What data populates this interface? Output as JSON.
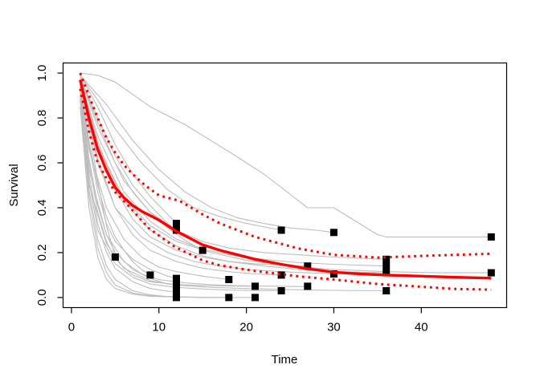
{
  "chart_data": {
    "type": "line",
    "title": "",
    "xlabel": "Time",
    "ylabel": "Survival",
    "xlim": [
      -0.96,
      49.76
    ],
    "ylim": [
      -0.045,
      1.045
    ],
    "x_ticks": [
      0,
      10,
      20,
      30,
      40
    ],
    "x_tick_labels": [
      "0",
      "10",
      "20",
      "30",
      "40"
    ],
    "y_ticks": [
      0.0,
      0.2,
      0.4,
      0.6,
      0.8,
      1.0
    ],
    "y_tick_labels": [
      "0.0",
      "0.2",
      "0.4",
      "0.6",
      "0.8",
      "1.0"
    ],
    "grid": false,
    "legend": false,
    "colors": {
      "individual_curve": "#bdbdbd",
      "mean_curve": "#ff0000",
      "confidence_band": "#ff0000",
      "event_marker": "#000000",
      "axis": "#000000"
    },
    "series": [
      {
        "name": "mean-survival",
        "style": "solid-thick",
        "x": [
          1,
          2,
          3,
          4,
          5,
          6,
          7,
          8,
          9,
          10,
          11,
          12,
          13,
          15,
          17,
          19,
          21,
          24,
          27,
          30,
          33,
          36,
          40,
          44,
          48
        ],
        "y": [
          0.97,
          0.8,
          0.66,
          0.565,
          0.49,
          0.445,
          0.41,
          0.385,
          0.365,
          0.345,
          0.32,
          0.295,
          0.275,
          0.235,
          0.21,
          0.19,
          0.17,
          0.148,
          0.128,
          0.113,
          0.105,
          0.1,
          0.095,
          0.09,
          0.086
        ]
      },
      {
        "name": "upper-confidence-band",
        "style": "dotted-thick",
        "x": [
          1,
          2,
          3,
          4,
          5,
          6,
          7,
          8.4,
          10,
          12.4,
          15,
          17,
          21,
          26,
          30,
          35,
          40,
          44,
          48
        ],
        "y": [
          1.0,
          0.9,
          0.8,
          0.71,
          0.645,
          0.59,
          0.55,
          0.5,
          0.455,
          0.43,
          0.37,
          0.33,
          0.27,
          0.218,
          0.19,
          0.178,
          0.185,
          0.19,
          0.195
        ]
      },
      {
        "name": "lower-confidence-band",
        "style": "dotted-thick",
        "x": [
          1,
          2,
          3,
          4,
          5,
          6.6,
          8.8,
          11.8,
          15,
          17,
          21,
          26,
          30,
          35,
          40,
          44,
          48
        ],
        "y": [
          0.93,
          0.74,
          0.6,
          0.53,
          0.47,
          0.405,
          0.31,
          0.226,
          0.165,
          0.143,
          0.118,
          0.094,
          0.08,
          0.06,
          0.048,
          0.038,
          0.035
        ]
      }
    ],
    "individual_curves": [
      {
        "x": [
          1,
          2,
          3,
          4,
          5
        ],
        "y": [
          0.97,
          0.75,
          0.52,
          0.32,
          0.18
        ]
      },
      {
        "x": [
          1,
          2,
          3,
          4,
          5,
          6,
          7,
          8,
          9
        ],
        "y": [
          0.96,
          0.7,
          0.5,
          0.36,
          0.27,
          0.21,
          0.16,
          0.125,
          0.1
        ]
      },
      {
        "x": [
          1,
          3,
          5,
          7,
          9,
          11,
          12
        ],
        "y": [
          0.99,
          0.85,
          0.68,
          0.55,
          0.45,
          0.37,
          0.33
        ]
      },
      {
        "x": [
          1,
          3,
          5,
          7,
          9,
          11,
          12
        ],
        "y": [
          0.98,
          0.8,
          0.63,
          0.5,
          0.41,
          0.33,
          0.3
        ]
      },
      {
        "x": [
          1,
          2,
          3,
          4,
          5,
          7,
          9,
          11,
          12
        ],
        "y": [
          0.95,
          0.68,
          0.47,
          0.33,
          0.25,
          0.17,
          0.125,
          0.095,
          0.085
        ]
      },
      {
        "x": [
          1,
          2,
          3,
          4,
          5,
          7,
          9,
          11,
          12
        ],
        "y": [
          0.94,
          0.62,
          0.41,
          0.28,
          0.2,
          0.125,
          0.085,
          0.06,
          0.055
        ]
      },
      {
        "x": [
          1,
          2,
          3,
          4,
          5,
          7,
          9,
          11,
          12
        ],
        "y": [
          0.92,
          0.55,
          0.33,
          0.2,
          0.13,
          0.07,
          0.04,
          0.028,
          0.025
        ]
      },
      {
        "x": [
          1,
          2,
          3,
          4,
          5,
          7,
          9,
          11,
          12
        ],
        "y": [
          0.9,
          0.48,
          0.26,
          0.14,
          0.08,
          0.03,
          0.012,
          0.004,
          0.002
        ]
      },
      {
        "x": [
          1,
          3,
          5,
          7,
          9,
          11,
          13,
          15
        ],
        "y": [
          0.98,
          0.78,
          0.6,
          0.47,
          0.38,
          0.31,
          0.255,
          0.21
        ]
      },
      {
        "x": [
          1,
          2,
          4,
          6,
          8,
          10,
          12,
          15,
          18
        ],
        "y": [
          0.95,
          0.66,
          0.4,
          0.26,
          0.18,
          0.135,
          0.115,
          0.095,
          0.08
        ]
      },
      {
        "x": [
          1,
          2,
          3,
          4,
          5,
          7,
          9,
          12,
          15,
          18
        ],
        "y": [
          0.88,
          0.45,
          0.22,
          0.11,
          0.055,
          0.02,
          0.008,
          0.003,
          0.001,
          0.0
        ]
      },
      {
        "x": [
          1,
          2,
          3,
          4,
          5,
          7,
          9,
          12,
          15,
          18,
          21
        ],
        "y": [
          0.93,
          0.6,
          0.38,
          0.25,
          0.17,
          0.1,
          0.07,
          0.058,
          0.053,
          0.051,
          0.05
        ]
      },
      {
        "x": [
          1,
          2,
          3,
          4,
          5,
          7,
          9,
          12,
          15,
          21
        ],
        "y": [
          0.85,
          0.4,
          0.18,
          0.08,
          0.04,
          0.015,
          0.005,
          0.002,
          0.0,
          0.0
        ]
      },
      {
        "x": [
          1,
          3,
          5,
          8,
          11,
          14,
          17,
          20,
          24
        ],
        "y": [
          0.99,
          0.88,
          0.75,
          0.6,
          0.48,
          0.4,
          0.36,
          0.33,
          0.3
        ]
      },
      {
        "x": [
          1,
          3,
          5,
          7,
          9,
          12,
          15,
          18,
          21,
          24
        ],
        "y": [
          0.96,
          0.62,
          0.4,
          0.28,
          0.21,
          0.16,
          0.13,
          0.115,
          0.105,
          0.1
        ]
      },
      {
        "x": [
          1,
          2,
          3,
          5,
          7,
          9,
          12,
          15,
          18,
          21,
          24
        ],
        "y": [
          0.91,
          0.52,
          0.3,
          0.15,
          0.09,
          0.06,
          0.045,
          0.038,
          0.033,
          0.031,
          0.03
        ]
      },
      {
        "x": [
          1,
          3,
          5,
          7,
          9,
          12,
          15,
          18,
          21,
          24,
          27
        ],
        "y": [
          0.97,
          0.7,
          0.48,
          0.35,
          0.27,
          0.21,
          0.18,
          0.16,
          0.15,
          0.145,
          0.14
        ]
      },
      {
        "x": [
          1,
          2,
          4,
          6,
          8,
          10,
          13,
          16,
          20,
          24,
          27
        ],
        "y": [
          0.92,
          0.57,
          0.28,
          0.16,
          0.105,
          0.08,
          0.065,
          0.057,
          0.052,
          0.05,
          0.048
        ]
      },
      {
        "x": [
          1,
          4,
          7,
          10,
          13,
          16,
          19,
          22,
          25,
          28,
          30
        ],
        "y": [
          0.99,
          0.86,
          0.7,
          0.57,
          0.47,
          0.4,
          0.355,
          0.33,
          0.31,
          0.3,
          0.29
        ]
      },
      {
        "x": [
          1,
          3,
          5,
          8,
          11,
          14,
          17,
          20,
          24,
          27,
          30
        ],
        "y": [
          0.95,
          0.6,
          0.4,
          0.27,
          0.2,
          0.16,
          0.14,
          0.125,
          0.115,
          0.11,
          0.105
        ]
      },
      {
        "x": [
          1,
          3,
          6,
          9,
          12,
          15,
          18,
          22,
          26,
          30,
          36
        ],
        "y": [
          0.98,
          0.76,
          0.52,
          0.38,
          0.3,
          0.25,
          0.22,
          0.2,
          0.19,
          0.18,
          0.17
        ]
      },
      {
        "x": [
          1,
          3,
          6,
          9,
          12,
          15,
          18,
          22,
          26,
          30,
          36
        ],
        "y": [
          0.97,
          0.72,
          0.47,
          0.34,
          0.26,
          0.215,
          0.19,
          0.17,
          0.155,
          0.148,
          0.14
        ]
      },
      {
        "x": [
          1,
          3,
          6,
          9,
          12,
          15,
          18,
          22,
          26,
          30,
          36
        ],
        "y": [
          0.96,
          0.67,
          0.43,
          0.3,
          0.23,
          0.185,
          0.16,
          0.14,
          0.125,
          0.115,
          0.11
        ]
      },
      {
        "x": [
          1,
          2,
          4,
          6,
          9,
          12,
          16,
          20,
          25,
          30,
          36
        ],
        "y": [
          0.9,
          0.5,
          0.24,
          0.13,
          0.075,
          0.055,
          0.045,
          0.04,
          0.035,
          0.032,
          0.03
        ]
      },
      {
        "x": [
          1,
          3,
          5,
          9,
          13,
          18,
          22,
          27,
          30,
          35,
          36,
          48
        ],
        "y": [
          1.0,
          0.99,
          0.96,
          0.85,
          0.77,
          0.65,
          0.55,
          0.4,
          0.4,
          0.28,
          0.27,
          0.27
        ]
      },
      {
        "x": [
          1,
          3,
          6,
          9,
          12,
          16,
          20,
          25,
          30,
          36,
          42,
          48
        ],
        "y": [
          0.97,
          0.68,
          0.44,
          0.32,
          0.25,
          0.2,
          0.165,
          0.14,
          0.125,
          0.115,
          0.11,
          0.11
        ]
      }
    ],
    "event_markers": [
      {
        "x": 5,
        "y": 0.18
      },
      {
        "x": 9,
        "y": 0.1
      },
      {
        "x": 12,
        "y": 0.33
      },
      {
        "x": 12,
        "y": 0.3
      },
      {
        "x": 12,
        "y": 0.085
      },
      {
        "x": 12,
        "y": 0.055
      },
      {
        "x": 12,
        "y": 0.025
      },
      {
        "x": 12,
        "y": 0.0
      },
      {
        "x": 15,
        "y": 0.21
      },
      {
        "x": 18,
        "y": 0.08
      },
      {
        "x": 18,
        "y": 0.0
      },
      {
        "x": 21,
        "y": 0.05
      },
      {
        "x": 21,
        "y": 0.0
      },
      {
        "x": 24,
        "y": 0.3
      },
      {
        "x": 24,
        "y": 0.1
      },
      {
        "x": 24,
        "y": 0.03
      },
      {
        "x": 27,
        "y": 0.14
      },
      {
        "x": 27,
        "y": 0.05
      },
      {
        "x": 30,
        "y": 0.29
      },
      {
        "x": 30,
        "y": 0.105
      },
      {
        "x": 36,
        "y": 0.17
      },
      {
        "x": 36,
        "y": 0.14
      },
      {
        "x": 36,
        "y": 0.11
      },
      {
        "x": 36,
        "y": 0.03
      },
      {
        "x": 48,
        "y": 0.27
      },
      {
        "x": 48,
        "y": 0.11
      }
    ]
  }
}
